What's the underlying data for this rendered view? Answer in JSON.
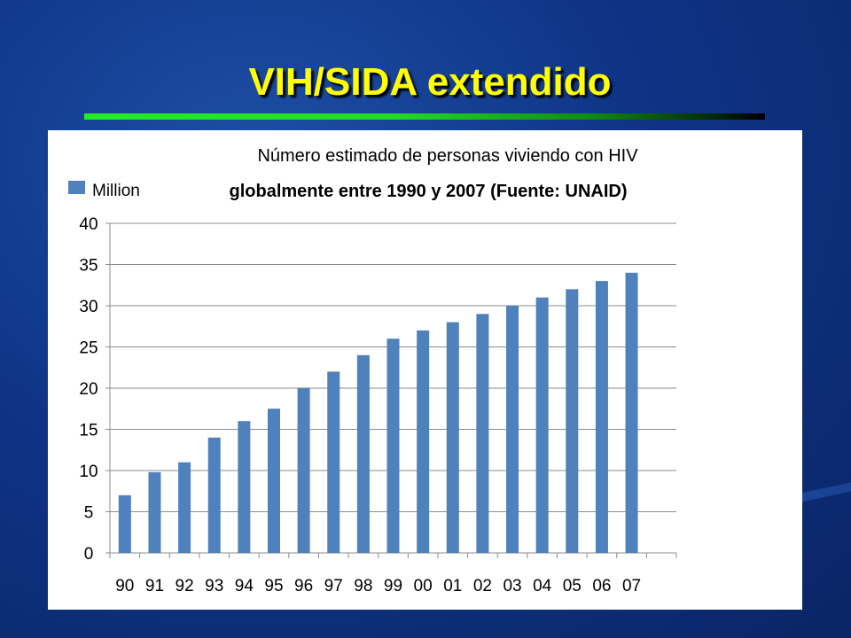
{
  "slide": {
    "title": "VIH/SIDA extendido"
  },
  "colors": {
    "title": "#ffff00",
    "rule_start": "#22ee22",
    "rule_end": "#000000",
    "bar": "#4f81bd",
    "background": "#0f3486"
  },
  "chart_data": {
    "type": "bar",
    "title": "Número estimado de personas viviendo con HIV",
    "subtitle": "globalmente entre 1990 y 2007 (Fuente: UNAID)",
    "categories": [
      "90",
      "91",
      "92",
      "93",
      "94",
      "95",
      "96",
      "97",
      "98",
      "99",
      "00",
      "01",
      "02",
      "03",
      "04",
      "05",
      "06",
      "07"
    ],
    "series": [
      {
        "name": "Million",
        "values": [
          7,
          9.8,
          11,
          14,
          16,
          17.5,
          20,
          22,
          24,
          26,
          27,
          28,
          29,
          30,
          31,
          32,
          33,
          34
        ]
      }
    ],
    "ylim": [
      0,
      40
    ],
    "yticks": [
      0,
      5,
      10,
      15,
      20,
      25,
      30,
      35,
      40
    ],
    "grid": true,
    "legend_position": "top-left",
    "xlabel": "",
    "ylabel": ""
  }
}
